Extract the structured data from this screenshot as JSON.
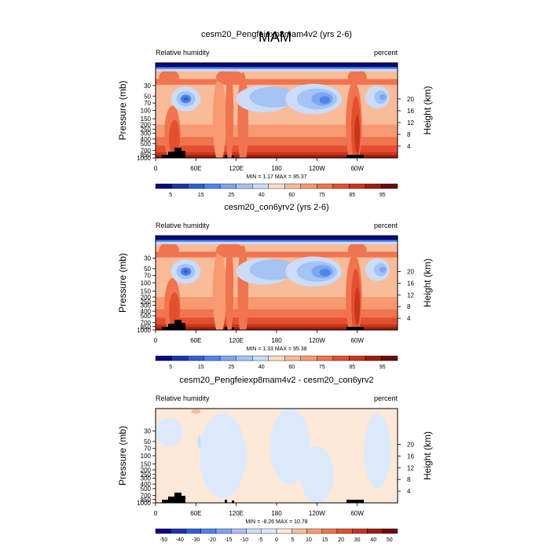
{
  "figure": {
    "title": "MAM"
  },
  "chart_data": [
    {
      "type": "heatmap",
      "title": "cesm20_Pengfeiexp8mam4v2 (yrs 2-6)",
      "left_label": "Relative humidity",
      "right_label": "percent",
      "xlabel": "",
      "ylabel": "Pressure (mb)",
      "ylabel_right": "Height (km)",
      "x_ticks": [
        "0",
        "60E",
        "120E",
        "180",
        "120W",
        "60W"
      ],
      "y_ticks": [
        "1000",
        "850",
        "700",
        "500",
        "400",
        "300",
        "250",
        "200",
        "150",
        "100",
        "70",
        "50",
        "30"
      ],
      "y_ticks_right": [
        "20",
        "16",
        "12",
        "8",
        "4"
      ],
      "stats": "MIN =   1.17  MAX =  95.37",
      "colorbar_labels": [
        "5",
        "15",
        "25",
        "40",
        "60",
        "75",
        "85",
        "95"
      ],
      "colorbar_colors": [
        "#08087e",
        "#1d34b0",
        "#2f5fd6",
        "#4d86e8",
        "#7ba6f0",
        "#a5c3f5",
        "#cadcf8",
        "#f8dcc8",
        "#f9bc9a",
        "#f79a73",
        "#f0744f",
        "#e34f2f",
        "#c8361c",
        "#a01c0e",
        "#6e0a06"
      ],
      "stipple": "none"
    },
    {
      "type": "heatmap",
      "title": "cesm20_con6yrv2 (yrs 2-6)",
      "left_label": "Relative humidity",
      "right_label": "percent",
      "xlabel": "",
      "ylabel": "Pressure (mb)",
      "ylabel_right": "Height (km)",
      "x_ticks": [
        "0",
        "60E",
        "120E",
        "180",
        "120W",
        "60W"
      ],
      "y_ticks": [
        "1000",
        "850",
        "700",
        "500",
        "400",
        "300",
        "250",
        "200",
        "150",
        "100",
        "70",
        "50",
        "30"
      ],
      "y_ticks_right": [
        "20",
        "16",
        "12",
        "8",
        "4"
      ],
      "stats": "MIN =   1.33  MAX =  95.38",
      "colorbar_labels": [
        "5",
        "15",
        "25",
        "40",
        "60",
        "75",
        "85",
        "95"
      ],
      "colorbar_colors": [
        "#08087e",
        "#1d34b0",
        "#2f5fd6",
        "#4d86e8",
        "#7ba6f0",
        "#a5c3f5",
        "#cadcf8",
        "#f8dcc8",
        "#f9bc9a",
        "#f79a73",
        "#f0744f",
        "#e34f2f",
        "#c8361c",
        "#a01c0e",
        "#6e0a06"
      ],
      "stipple": "none"
    },
    {
      "type": "heatmap",
      "title": "cesm20_Pengfeiexp8mam4v2 - cesm20_con6yrv2",
      "left_label": "Relative humidity",
      "right_label": "percent",
      "xlabel": "",
      "ylabel": "Pressure (mb)",
      "ylabel_right": "Height (km)",
      "x_ticks": [
        "0",
        "60E",
        "120E",
        "180",
        "120W",
        "60W"
      ],
      "y_ticks": [
        "1000",
        "850",
        "700",
        "500",
        "400",
        "300",
        "250",
        "200",
        "150",
        "100",
        "70",
        "50",
        "30"
      ],
      "y_ticks_right": [
        "20",
        "16",
        "12",
        "8",
        "4"
      ],
      "stats": "MIN =  -8.26  MAX =  10.78",
      "colorbar_labels": [
        "-50",
        "-40",
        "-30",
        "-20",
        "-15",
        "-10",
        "-5",
        "0",
        "5",
        "10",
        "15",
        "20",
        "30",
        "40",
        "50"
      ],
      "colorbar_colors": [
        "#08087e",
        "#1d34b0",
        "#2f5fd6",
        "#4d86e8",
        "#7ba6f0",
        "#a5c3f5",
        "#cadcf8",
        "#dce9fb",
        "#fde8d8",
        "#f9bc9a",
        "#f79a73",
        "#f0744f",
        "#e34f2f",
        "#c8361c",
        "#a01c0e",
        "#6e0a06"
      ],
      "stipple": "diff"
    }
  ]
}
